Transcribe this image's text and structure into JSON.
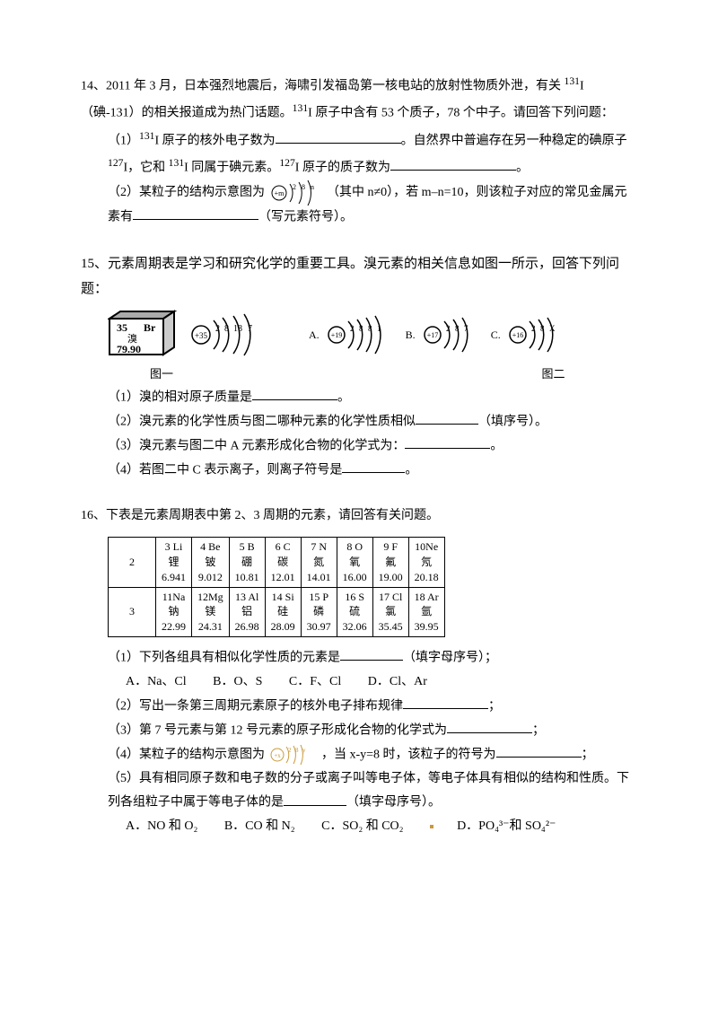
{
  "q14": {
    "num": "14、",
    "intro_a": "2011 年 3 月，日本强烈地震后，海啸引发福岛第一核电站的放射性物质外泄，有关 ",
    "iodine131": "131",
    "intro_b": "I（碘-131）的相关报道成为热门话题。",
    "intro_c": "I 原子中含有 53 个质子，78 个中子。请回答下列问题：",
    "p1a": "（1）",
    "p1b": "I 原子的核外电子数为",
    "p1c": "。自然界中普遍存在另一种稳定的碘原子 ",
    "iodine127": "127",
    "p1d": "I，它和 ",
    "p1e": "I 同属于碘元素。",
    "p1f": "I 原子的质子数为",
    "p1g": "。",
    "p2a": "（2）某粒子的结构示意图为 ",
    "p2b": "（其中 n≠0），若 m–n=10，则该粒子对应的常见金属元素有",
    "p2c": "（写元素符号）。",
    "atom_core": "+m",
    "atom_shells": [
      "2",
      "8",
      "n"
    ]
  },
  "q15": {
    "num": "15、",
    "intro": "元素周期表是学习和研究化学的重要工具。溴元素的相关信息如图一所示，回答下列问题：",
    "br_num": "35",
    "br_sym": "Br",
    "br_name": "溴",
    "br_mass": "79.90",
    "br_core": "+35",
    "br_shells": [
      "2",
      "8",
      "18",
      "7"
    ],
    "A_label": "A.",
    "A_core": "+19",
    "A_shells": [
      "2",
      "8",
      "8",
      "1"
    ],
    "B_label": "B.",
    "B_core": "+17",
    "B_shells": [
      "2",
      "8",
      "7"
    ],
    "C_label": "C.",
    "C_core": "+16",
    "C_shells": [
      "2",
      "8",
      "X"
    ],
    "fig1_label": "图一",
    "fig2_label": "图二",
    "p1": "（1）溴的相对原子质量是",
    "p1_end": "。",
    "p2a": "（2）溴元素的化学性质与图二哪种元素的化学性质相似",
    "p2b": "（填序号）。",
    "p3a": "（3）溴元素与图二中 A 元素形成化合物的化学式为：",
    "p3b": "。",
    "p4a": "（4）若图二中 C 表示离子，则离子符号是",
    "p4b": "。"
  },
  "q16": {
    "num": "16、",
    "intro": "下表是元素周期表中第 2、3 周期的元素，请回答有关问题。",
    "rows": [
      {
        "period": "2",
        "cells": [
          {
            "n": "3 Li",
            "c": "锂",
            "m": "6.941"
          },
          {
            "n": "4 Be",
            "c": "铍",
            "m": "9.012"
          },
          {
            "n": "5 B",
            "c": "硼",
            "m": "10.81"
          },
          {
            "n": "6 C",
            "c": "碳",
            "m": "12.01"
          },
          {
            "n": "7 N",
            "c": "氮",
            "m": "14.01"
          },
          {
            "n": "8 O",
            "c": "氧",
            "m": "16.00"
          },
          {
            "n": "9 F",
            "c": "氟",
            "m": "19.00"
          },
          {
            "n": "10Ne",
            "c": "氖",
            "m": "20.18"
          }
        ]
      },
      {
        "period": "3",
        "cells": [
          {
            "n": "11Na",
            "c": "钠",
            "m": "22.99"
          },
          {
            "n": "12Mg",
            "c": "镁",
            "m": "24.31"
          },
          {
            "n": "13 Al",
            "c": "铝",
            "m": "26.98"
          },
          {
            "n": "14 Si",
            "c": "硅",
            "m": "28.09"
          },
          {
            "n": "15 P",
            "c": "磷",
            "m": "30.97"
          },
          {
            "n": "16 S",
            "c": "硫",
            "m": "32.06"
          },
          {
            "n": "17 Cl",
            "c": "氯",
            "m": "35.45"
          },
          {
            "n": "18 Ar",
            "c": "氩",
            "m": "39.95"
          }
        ]
      }
    ],
    "p1a": "（1）下列各组具有相似化学性质的元素是",
    "p1b": "（填字母序号）；",
    "p1_opts": {
      "A": "A．Na、Cl",
      "B": "B．O、S",
      "C": "C．F、Cl",
      "D": "D．Cl、Ar"
    },
    "p2a": "（2）写出一条第三周期元素原子的核外电子排布规律",
    "p2b": "；",
    "p3a": "（3）第 7 号元素与第 12 号元素的原子形成化合物的化学式为",
    "p3b": "；",
    "atom_core": "+x",
    "atom_shells": [
      "2",
      "8",
      "y"
    ],
    "p4a": "（4）某粒子的结构示意图为 ",
    "p4b": "，当 x-y=8 时，该粒子的符号为",
    "p4c": "；",
    "p5a": "（5）具有相同原子数和电子数的分子或离子叫等电子体，等电子体具有相似的结构和性质。下列各组粒子中属于等电子体的是",
    "p5b": "（填字母序号）。",
    "p5_opts": {
      "A": "A．NO 和 O₂",
      "B": "B．CO 和  N₂",
      "C": "C．SO₂ 和  CO₂",
      "D": "D．PO₄³⁻和 SO₄²⁻"
    }
  }
}
